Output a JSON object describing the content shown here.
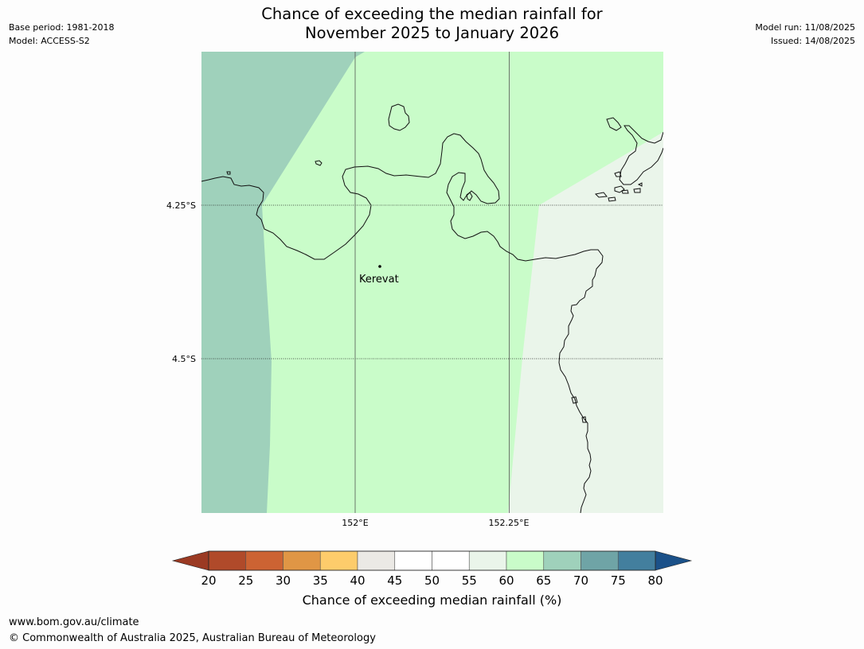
{
  "title": {
    "line1": "Chance of exceeding the median rainfall for",
    "line2": "November 2025 to January 2026"
  },
  "meta_left": {
    "base_period": "Base period: 1981-2018",
    "model": "Model: ACCESS-S2"
  },
  "meta_right": {
    "model_run": "Model run: 11/08/2025",
    "issued": "Issued: 14/08/2025"
  },
  "map": {
    "place": "Kerevat",
    "lat_labels": [
      "4.25°S",
      "4.5°S"
    ],
    "lon_labels": [
      "152°E",
      "152.25°E"
    ],
    "colors": {
      "band_65_70": "#9fd1bb",
      "band_60_65": "#c9fcc9",
      "band_55_60": "#eaf5ea",
      "coast": "#111111",
      "grid": "#555555"
    }
  },
  "colorbar": {
    "ticks": [
      "20",
      "25",
      "30",
      "35",
      "40",
      "45",
      "50",
      "55",
      "60",
      "65",
      "70",
      "75",
      "80"
    ],
    "colors": [
      "#b04a2a",
      "#cc6333",
      "#e09645",
      "#fdcc6b",
      "#ebe9e5",
      "#ffffff",
      "#ffffff",
      "#eaf5ea",
      "#c9fcc9",
      "#9fd1bb",
      "#6fa4a6",
      "#437f9e"
    ],
    "under_color": "#9b3a23",
    "over_color": "#1b5189",
    "label": "Chance of exceeding median rainfall (%)"
  },
  "footer": {
    "url": "www.bom.gov.au/climate",
    "copyright": "© Commonwealth of Australia 2025, Australian Bureau of Meteorology"
  }
}
